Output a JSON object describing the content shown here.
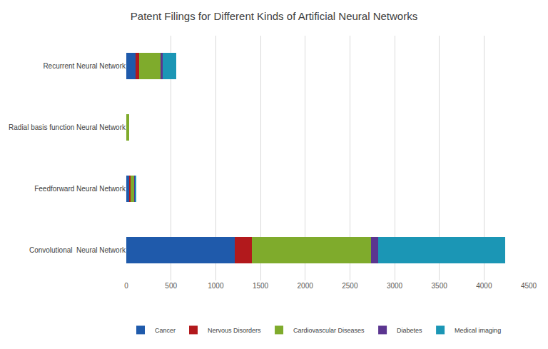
{
  "chart_data": {
    "type": "bar",
    "title": "Patent Filings for Different Kinds of Artificial Neural Networks",
    "orientation": "horizontal",
    "stacked": true,
    "categories": [
      "Convolutional  Neural Network",
      "Feedforward Neural Network",
      "Radial basis function Neural Network",
      "Recurrent Neural Network"
    ],
    "series": [
      {
        "name": "Cancer",
        "color": "#1f5aab",
        "values": [
          1210,
          35,
          0,
          100
        ]
      },
      {
        "name": "Nervous Disorders",
        "color": "#b2191c",
        "values": [
          195,
          10,
          0,
          40
        ]
      },
      {
        "name": "Cardiovascular Diseases",
        "color": "#7fab2c",
        "values": [
          1330,
          45,
          30,
          245
        ]
      },
      {
        "name": "Diabetes",
        "color": "#5b3590",
        "values": [
          80,
          5,
          0,
          20
        ]
      },
      {
        "name": "Medical imaging",
        "color": "#1b96b5",
        "values": [
          1420,
          20,
          0,
          150
        ]
      }
    ],
    "xlim": [
      0,
      4500
    ],
    "xticks": [
      0,
      500,
      1000,
      1500,
      2000,
      2500,
      3000,
      3500,
      4000,
      4500
    ],
    "grid": true,
    "legend": "bottom"
  }
}
